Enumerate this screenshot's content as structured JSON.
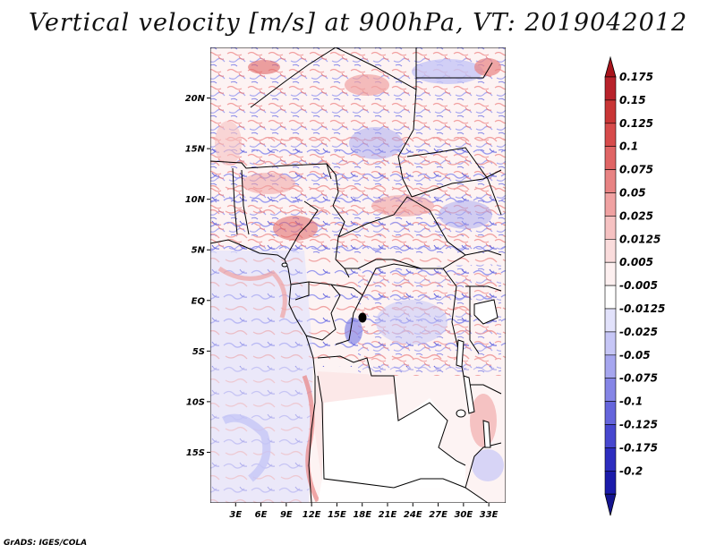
{
  "title": "Vertical velocity [m/s] at 900hPa, VT: 2019042012",
  "credit": "GrADS: IGES/COLA",
  "map": {
    "region": "Central Africa",
    "variable": "Vertical velocity",
    "units": "m/s",
    "level": "900hPa",
    "valid_time": "2019042012",
    "lon_range": [
      0,
      35
    ],
    "lat_range": [
      -20,
      25
    ],
    "lat_ticks": [
      {
        "value": 20,
        "label": "20N"
      },
      {
        "value": 15,
        "label": "15N"
      },
      {
        "value": 10,
        "label": "10N"
      },
      {
        "value": 5,
        "label": "5N"
      },
      {
        "value": 0,
        "label": "EQ"
      },
      {
        "value": -5,
        "label": "5S"
      },
      {
        "value": -10,
        "label": "10S"
      },
      {
        "value": -15,
        "label": "15S"
      }
    ],
    "lon_ticks": [
      {
        "value": 3,
        "label": "3E"
      },
      {
        "value": 6,
        "label": "6E"
      },
      {
        "value": 9,
        "label": "9E"
      },
      {
        "value": 12,
        "label": "12E"
      },
      {
        "value": 15,
        "label": "15E"
      },
      {
        "value": 18,
        "label": "18E"
      },
      {
        "value": 21,
        "label": "21E"
      },
      {
        "value": 24,
        "label": "24E"
      },
      {
        "value": 27,
        "label": "27E"
      },
      {
        "value": 30,
        "label": "30E"
      },
      {
        "value": 33,
        "label": "33E"
      }
    ]
  },
  "colorbar": {
    "entries": [
      {
        "label": "0.175",
        "color": "#b8222b"
      },
      {
        "label": "0.15",
        "color": "#c93636"
      },
      {
        "label": "0.125",
        "color": "#d74b4b"
      },
      {
        "label": "0.1",
        "color": "#e06565"
      },
      {
        "label": "0.075",
        "color": "#e88383"
      },
      {
        "label": "0.05",
        "color": "#f0a2a2"
      },
      {
        "label": "0.025",
        "color": "#f6c2c2"
      },
      {
        "label": "0.0125",
        "color": "#fadcdc"
      },
      {
        "label": "0.005",
        "color": "#fdf0f0"
      },
      {
        "label": "-0.005",
        "color": "#ffffff"
      },
      {
        "label": "-0.0125",
        "color": "#e2e2fb"
      },
      {
        "label": "-0.025",
        "color": "#c6c6f6"
      },
      {
        "label": "-0.05",
        "color": "#a6a6ef"
      },
      {
        "label": "-0.075",
        "color": "#8585e6"
      },
      {
        "label": "-0.1",
        "color": "#6565dc"
      },
      {
        "label": "-0.125",
        "color": "#4747cf"
      },
      {
        "label": "-0.175",
        "color": "#2d2dbf"
      },
      {
        "label": "-0.2",
        "color": "#1b1baa"
      }
    ],
    "top_color": "#a8141c",
    "bottom_color": "#14148f"
  }
}
